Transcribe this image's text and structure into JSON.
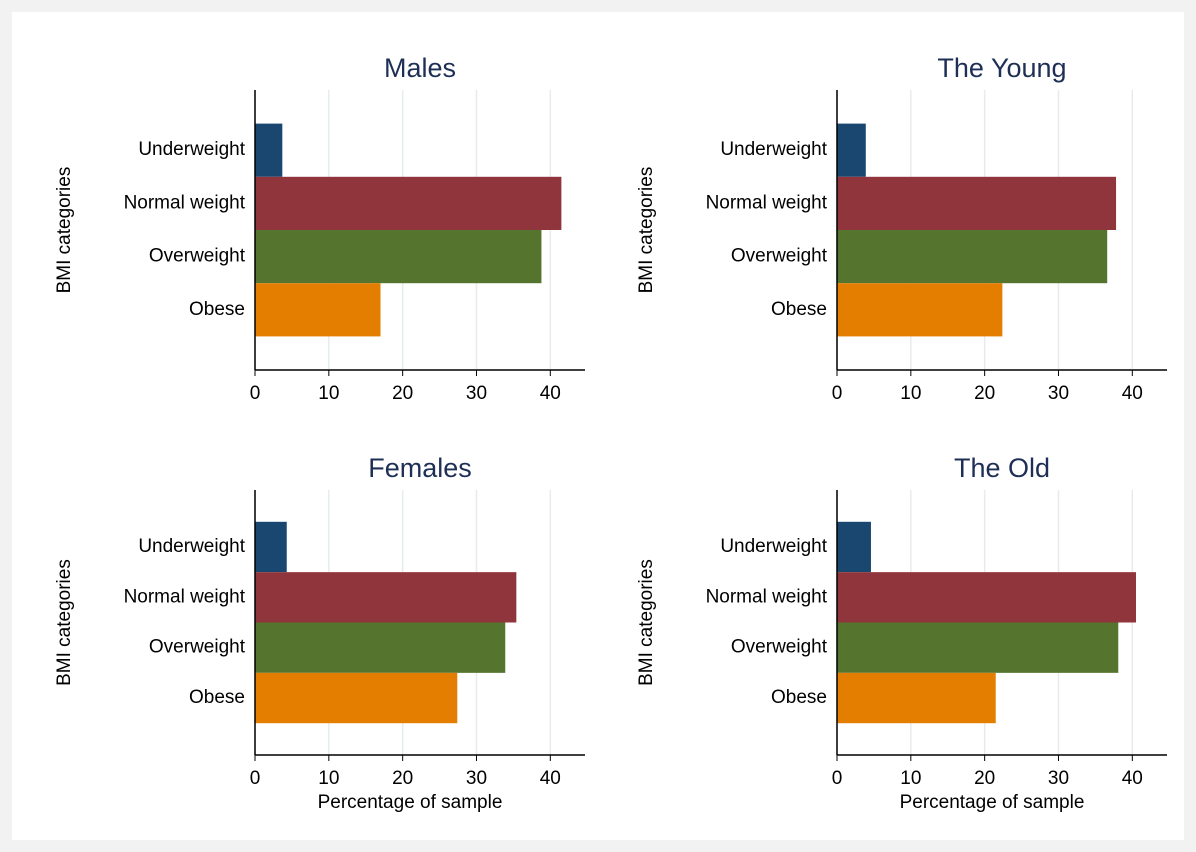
{
  "chart_data": [
    {
      "type": "bar",
      "orientation": "horizontal",
      "title": "Males",
      "ylabel": "BMI categories",
      "categories": [
        "Underweight",
        "Normal weight",
        "Overweight",
        "Obese"
      ],
      "values": [
        3.7,
        41.5,
        38.8,
        17.0
      ],
      "colors": [
        "#1a476f",
        "#90353b",
        "#55752f",
        "#e37e00"
      ],
      "xlim": [
        0,
        44.7
      ],
      "xticks": [
        0,
        10,
        20,
        30,
        40
      ],
      "grid": true
    },
    {
      "type": "bar",
      "orientation": "horizontal",
      "title": "The Young",
      "ylabel": "BMI categories",
      "categories": [
        "Underweight",
        "Normal weight",
        "Overweight",
        "Obese"
      ],
      "values": [
        3.9,
        37.8,
        36.6,
        22.4
      ],
      "colors": [
        "#1a476f",
        "#90353b",
        "#55752f",
        "#e37e00"
      ],
      "xlim": [
        0,
        44.7
      ],
      "xticks": [
        0,
        10,
        20,
        30,
        40
      ],
      "grid": true
    },
    {
      "type": "bar",
      "orientation": "horizontal",
      "title": "Females",
      "ylabel": "BMI categories",
      "xlabel": "Percentage of sample",
      "categories": [
        "Underweight",
        "Normal weight",
        "Overweight",
        "Obese"
      ],
      "values": [
        4.3,
        35.4,
        33.9,
        27.4
      ],
      "colors": [
        "#1a476f",
        "#90353b",
        "#55752f",
        "#e37e00"
      ],
      "xlim": [
        0,
        44.7
      ],
      "xticks": [
        0,
        10,
        20,
        30,
        40
      ],
      "grid": true
    },
    {
      "type": "bar",
      "orientation": "horizontal",
      "title": "The Old",
      "ylabel": "BMI categories",
      "xlabel": "Percentage of sample",
      "categories": [
        "Underweight",
        "Normal weight",
        "Overweight",
        "Obese"
      ],
      "values": [
        4.6,
        40.5,
        38.1,
        21.5
      ],
      "colors": [
        "#1a476f",
        "#90353b",
        "#55752f",
        "#e37e00"
      ],
      "xlim": [
        0,
        44.7
      ],
      "xticks": [
        0,
        10,
        20,
        30,
        40
      ],
      "grid": true
    }
  ]
}
